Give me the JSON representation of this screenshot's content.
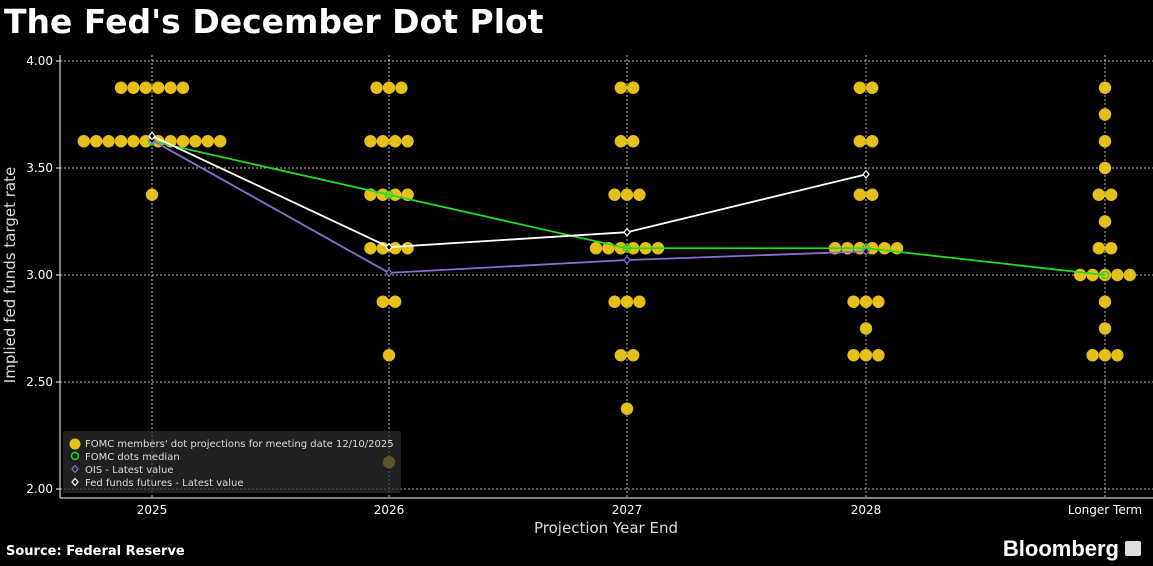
{
  "title": "The Fed's December Dot Plot",
  "source": "Source: Federal Reserve",
  "logo": "Bloomberg",
  "chart_data": {
    "type": "scatter",
    "title": "The Fed's December Dot Plot",
    "xlabel": "Projection Year End",
    "ylabel": "Implied fed funds target rate",
    "categories": [
      "2025",
      "2026",
      "2027",
      "2028",
      "Longer Term"
    ],
    "ylim": [
      2.0,
      4.0
    ],
    "yticks": [
      "4.00",
      "3.50",
      "3.00",
      "2.50",
      "2.00"
    ],
    "grid": true,
    "legend_position": "bottom-left",
    "colors": {
      "dots": "#e6c01a",
      "median": "#22dd22",
      "ois": "#8a6fd0",
      "futures": "#ffffff"
    },
    "dots": [
      [
        {
          "rate": 3.875,
          "count": 6
        },
        {
          "rate": 3.625,
          "count": 12
        },
        {
          "rate": 3.375,
          "count": 1
        }
      ],
      [
        {
          "rate": 3.875,
          "count": 3
        },
        {
          "rate": 3.625,
          "count": 4
        },
        {
          "rate": 3.375,
          "count": 4
        },
        {
          "rate": 3.125,
          "count": 4
        },
        {
          "rate": 2.875,
          "count": 2
        },
        {
          "rate": 2.625,
          "count": 1
        },
        {
          "rate": 2.125,
          "count": 1
        }
      ],
      [
        {
          "rate": 3.875,
          "count": 2
        },
        {
          "rate": 3.625,
          "count": 2
        },
        {
          "rate": 3.375,
          "count": 3
        },
        {
          "rate": 3.125,
          "count": 6
        },
        {
          "rate": 2.875,
          "count": 3
        },
        {
          "rate": 2.625,
          "count": 2
        },
        {
          "rate": 2.375,
          "count": 1
        }
      ],
      [
        {
          "rate": 3.875,
          "count": 2
        },
        {
          "rate": 3.625,
          "count": 2
        },
        {
          "rate": 3.375,
          "count": 2
        },
        {
          "rate": 3.125,
          "count": 6
        },
        {
          "rate": 2.875,
          "count": 3
        },
        {
          "rate": 2.75,
          "count": 1
        },
        {
          "rate": 2.625,
          "count": 3
        }
      ],
      [
        {
          "rate": 3.875,
          "count": 1
        },
        {
          "rate": 3.75,
          "count": 1
        },
        {
          "rate": 3.625,
          "count": 1
        },
        {
          "rate": 3.5,
          "count": 1
        },
        {
          "rate": 3.375,
          "count": 2
        },
        {
          "rate": 3.25,
          "count": 1
        },
        {
          "rate": 3.125,
          "count": 2
        },
        {
          "rate": 3.0,
          "count": 5
        },
        {
          "rate": 2.875,
          "count": 1
        },
        {
          "rate": 2.75,
          "count": 1
        },
        {
          "rate": 2.625,
          "count": 3
        }
      ]
    ],
    "series": [
      {
        "name": "FOMC dots median",
        "values": [
          3.625,
          3.375,
          3.125,
          3.125,
          3.0
        ]
      },
      {
        "name": "OIS - Latest value",
        "values": [
          3.63,
          3.01,
          3.07,
          3.11,
          null
        ]
      },
      {
        "name": "Fed funds futures - Latest value",
        "values": [
          3.65,
          3.13,
          3.2,
          3.47,
          null
        ]
      }
    ],
    "legend": [
      "FOMC members' dot projections for meeting date 12/10/2025",
      "FOMC dots median",
      "OIS - Latest value",
      "Fed funds futures - Latest value"
    ]
  }
}
